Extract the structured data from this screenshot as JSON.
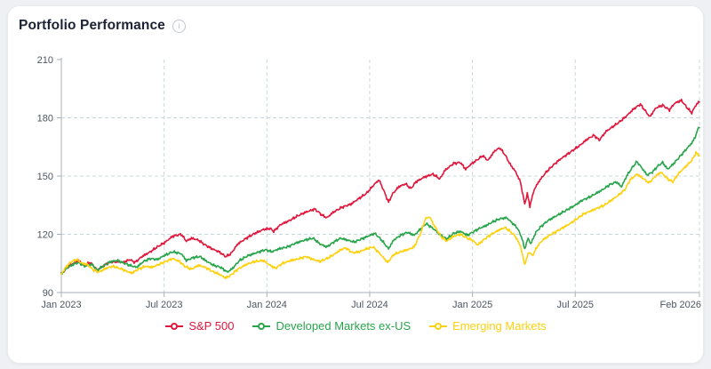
{
  "header": {
    "title": "Portfolio Performance"
  },
  "icons": {
    "info_glyph": "i"
  },
  "chart_data": {
    "type": "line",
    "title": "Portfolio Performance",
    "x_axis": {
      "range_months": [
        0,
        37.25
      ],
      "ticks": [
        {
          "t": 0,
          "label": "Jan 2023"
        },
        {
          "t": 6,
          "label": "Jul 2023"
        },
        {
          "t": 12,
          "label": "Jan 2024"
        },
        {
          "t": 18,
          "label": "Jul 2024"
        },
        {
          "t": 24,
          "label": "Jan 2025"
        },
        {
          "t": 30,
          "label": "Jul 2025"
        },
        {
          "t": 37.25,
          "label": "Feb 2026"
        }
      ]
    },
    "y_axis": {
      "range": [
        90,
        210
      ],
      "ticks": [
        90,
        120,
        150,
        180,
        210
      ],
      "gridlines_dashed": [
        120,
        150,
        180
      ]
    },
    "styling": {
      "grid_color": "#c8d8da",
      "axis_color": "#a9b0b8",
      "tick_label_color": "#4d5560",
      "noise_amplitude": 0.8
    },
    "legend": {
      "position": "bottom-center"
    },
    "series": [
      {
        "name": "S&P 500",
        "color": "#e0173d",
        "points": [
          [
            0,
            99.5
          ],
          [
            0.35,
            103
          ],
          [
            0.7,
            105
          ],
          [
            1,
            106.5
          ],
          [
            1.3,
            104
          ],
          [
            1.7,
            105.5
          ],
          [
            2.1,
            101.5
          ],
          [
            2.4,
            103.5
          ],
          [
            2.8,
            105.5
          ],
          [
            3.2,
            106
          ],
          [
            3.6,
            105.5
          ],
          [
            4,
            107
          ],
          [
            4.3,
            105.5
          ],
          [
            4.7,
            108.5
          ],
          [
            5.2,
            111
          ],
          [
            5.6,
            113.5
          ],
          [
            6,
            115.5
          ],
          [
            6.5,
            119
          ],
          [
            7,
            120
          ],
          [
            7.3,
            116.5
          ],
          [
            7.6,
            118
          ],
          [
            8,
            117
          ],
          [
            8.4,
            114.5
          ],
          [
            8.8,
            112.5
          ],
          [
            9.2,
            111
          ],
          [
            9.6,
            108.5
          ],
          [
            9.9,
            110
          ],
          [
            10.3,
            115
          ],
          [
            10.8,
            118
          ],
          [
            11.3,
            120.5
          ],
          [
            11.8,
            122.5
          ],
          [
            12.2,
            123
          ],
          [
            12.4,
            121.5
          ],
          [
            12.8,
            125
          ],
          [
            13.3,
            127
          ],
          [
            13.8,
            129.5
          ],
          [
            14.3,
            131.5
          ],
          [
            14.8,
            133
          ],
          [
            15.2,
            130
          ],
          [
            15.5,
            128.5
          ],
          [
            15.9,
            131.5
          ],
          [
            16.4,
            134
          ],
          [
            16.9,
            135.5
          ],
          [
            17.3,
            138
          ],
          [
            17.8,
            141
          ],
          [
            18.3,
            146
          ],
          [
            18.55,
            148
          ],
          [
            18.8,
            143
          ],
          [
            19.1,
            136.5
          ],
          [
            19.35,
            141
          ],
          [
            19.7,
            144.5
          ],
          [
            20.1,
            146
          ],
          [
            20.4,
            143.5
          ],
          [
            20.7,
            147
          ],
          [
            21.2,
            149.5
          ],
          [
            21.7,
            151
          ],
          [
            22.1,
            148.5
          ],
          [
            22.4,
            153
          ],
          [
            22.9,
            156.5
          ],
          [
            23.3,
            157
          ],
          [
            23.6,
            153.5
          ],
          [
            23.9,
            156
          ],
          [
            24.3,
            158.5
          ],
          [
            24.6,
            160.5
          ],
          [
            24.9,
            158
          ],
          [
            25.3,
            163
          ],
          [
            25.6,
            164.5
          ],
          [
            25.9,
            161
          ],
          [
            26.2,
            156
          ],
          [
            26.5,
            152.5
          ],
          [
            26.8,
            147
          ],
          [
            27.05,
            135.5
          ],
          [
            27.2,
            141
          ],
          [
            27.35,
            134.5
          ],
          [
            27.6,
            143
          ],
          [
            27.9,
            147.5
          ],
          [
            28.3,
            152
          ],
          [
            28.7,
            155.5
          ],
          [
            29.1,
            158.5
          ],
          [
            29.5,
            161
          ],
          [
            29.9,
            163.5
          ],
          [
            30.3,
            166
          ],
          [
            30.7,
            169
          ],
          [
            31.1,
            171
          ],
          [
            31.4,
            168.5
          ],
          [
            31.8,
            173
          ],
          [
            32.2,
            175.5
          ],
          [
            32.6,
            178
          ],
          [
            33,
            181
          ],
          [
            33.4,
            184.5
          ],
          [
            33.8,
            187
          ],
          [
            34.1,
            183.5
          ],
          [
            34.35,
            180.5
          ],
          [
            34.7,
            185
          ],
          [
            35.1,
            186.5
          ],
          [
            35.5,
            184
          ],
          [
            35.8,
            187.5
          ],
          [
            36.2,
            189
          ],
          [
            36.5,
            185.5
          ],
          [
            36.8,
            182.5
          ],
          [
            37,
            186
          ],
          [
            37.25,
            188.5
          ]
        ]
      },
      {
        "name": "Developed Markets ex-US",
        "color": "#28a44b",
        "points": [
          [
            0,
            99.5
          ],
          [
            0.3,
            102.5
          ],
          [
            0.7,
            104.5
          ],
          [
            1,
            105.5
          ],
          [
            1.4,
            103.5
          ],
          [
            1.8,
            104.5
          ],
          [
            2.1,
            101.5
          ],
          [
            2.5,
            104
          ],
          [
            2.9,
            106
          ],
          [
            3.3,
            106.5
          ],
          [
            3.7,
            105
          ],
          [
            4,
            104
          ],
          [
            4.4,
            103
          ],
          [
            4.8,
            106
          ],
          [
            5.2,
            107.5
          ],
          [
            5.6,
            107
          ],
          [
            6,
            109
          ],
          [
            6.5,
            111
          ],
          [
            7,
            110
          ],
          [
            7.3,
            106.5
          ],
          [
            7.7,
            108
          ],
          [
            8.1,
            108.5
          ],
          [
            8.5,
            106
          ],
          [
            8.9,
            104
          ],
          [
            9.3,
            103
          ],
          [
            9.7,
            100.5
          ],
          [
            10,
            102.5
          ],
          [
            10.4,
            106.5
          ],
          [
            10.9,
            109
          ],
          [
            11.4,
            110.5
          ],
          [
            11.9,
            112
          ],
          [
            12.3,
            111
          ],
          [
            12.7,
            112.5
          ],
          [
            13.2,
            113.5
          ],
          [
            13.7,
            115.5
          ],
          [
            14.2,
            117
          ],
          [
            14.7,
            118
          ],
          [
            15.1,
            115
          ],
          [
            15.5,
            113.5
          ],
          [
            15.9,
            116
          ],
          [
            16.3,
            118
          ],
          [
            16.7,
            117
          ],
          [
            17.1,
            116
          ],
          [
            17.5,
            117.5
          ],
          [
            17.9,
            119
          ],
          [
            18.3,
            120.5
          ],
          [
            18.7,
            117
          ],
          [
            19.1,
            112.5
          ],
          [
            19.4,
            117
          ],
          [
            19.8,
            119.5
          ],
          [
            20.2,
            121
          ],
          [
            20.6,
            119.5
          ],
          [
            21,
            123
          ],
          [
            21.3,
            125.5
          ],
          [
            21.7,
            123
          ],
          [
            22.1,
            120
          ],
          [
            22.5,
            117.5
          ],
          [
            22.9,
            120.5
          ],
          [
            23.3,
            121.5
          ],
          [
            23.7,
            119.5
          ],
          [
            24,
            121
          ],
          [
            24.4,
            123
          ],
          [
            24.8,
            124.5
          ],
          [
            25.2,
            126.5
          ],
          [
            25.6,
            128
          ],
          [
            26,
            128.5
          ],
          [
            26.3,
            126
          ],
          [
            26.6,
            123.5
          ],
          [
            26.85,
            119
          ],
          [
            27.05,
            112.5
          ],
          [
            27.25,
            118
          ],
          [
            27.4,
            115
          ],
          [
            27.7,
            121
          ],
          [
            28,
            124
          ],
          [
            28.4,
            127
          ],
          [
            28.8,
            129
          ],
          [
            29.2,
            131
          ],
          [
            29.6,
            133
          ],
          [
            30,
            135
          ],
          [
            30.4,
            137.5
          ],
          [
            30.8,
            139
          ],
          [
            31.2,
            141
          ],
          [
            31.6,
            143
          ],
          [
            32,
            145.5
          ],
          [
            32.4,
            147
          ],
          [
            32.7,
            144.5
          ],
          [
            33,
            150
          ],
          [
            33.3,
            154
          ],
          [
            33.6,
            157.5
          ],
          [
            33.9,
            154
          ],
          [
            34.2,
            150.5
          ],
          [
            34.5,
            152
          ],
          [
            34.8,
            155
          ],
          [
            35.1,
            157
          ],
          [
            35.4,
            153.5
          ],
          [
            35.7,
            156
          ],
          [
            36,
            159
          ],
          [
            36.4,
            163
          ],
          [
            36.8,
            167
          ],
          [
            37,
            170
          ],
          [
            37.15,
            174
          ],
          [
            37.25,
            175.5
          ]
        ]
      },
      {
        "name": "Emerging Markets",
        "color": "#fed10f",
        "points": [
          [
            0,
            99.5
          ],
          [
            0.3,
            103.5
          ],
          [
            0.6,
            106
          ],
          [
            0.9,
            107
          ],
          [
            1.2,
            105
          ],
          [
            1.5,
            104.5
          ],
          [
            1.9,
            101.5
          ],
          [
            2.2,
            100.5
          ],
          [
            2.6,
            102.5
          ],
          [
            3,
            103.5
          ],
          [
            3.4,
            102.5
          ],
          [
            3.8,
            101
          ],
          [
            4.1,
            100
          ],
          [
            4.5,
            102
          ],
          [
            4.9,
            103.5
          ],
          [
            5.3,
            103
          ],
          [
            5.7,
            104.5
          ],
          [
            6.1,
            106
          ],
          [
            6.5,
            107.5
          ],
          [
            6.9,
            106
          ],
          [
            7.2,
            103.5
          ],
          [
            7.6,
            102
          ],
          [
            8,
            104
          ],
          [
            8.4,
            103
          ],
          [
            8.8,
            101
          ],
          [
            9.2,
            99.5
          ],
          [
            9.6,
            97.5
          ],
          [
            9.9,
            99
          ],
          [
            10.3,
            102
          ],
          [
            10.8,
            104.5
          ],
          [
            11.3,
            106
          ],
          [
            11.8,
            106.5
          ],
          [
            12.1,
            104.5
          ],
          [
            12.5,
            102.5
          ],
          [
            12.9,
            105
          ],
          [
            13.4,
            106.5
          ],
          [
            13.9,
            107.5
          ],
          [
            14.3,
            108.5
          ],
          [
            14.7,
            107
          ],
          [
            15.1,
            106
          ],
          [
            15.5,
            107.5
          ],
          [
            15.9,
            109.5
          ],
          [
            16.3,
            112
          ],
          [
            16.6,
            113
          ],
          [
            17,
            110.5
          ],
          [
            17.4,
            111
          ],
          [
            17.8,
            112.5
          ],
          [
            18.2,
            113.5
          ],
          [
            18.6,
            110
          ],
          [
            19.05,
            105.5
          ],
          [
            19.4,
            109.5
          ],
          [
            19.8,
            111
          ],
          [
            20.2,
            112
          ],
          [
            20.6,
            113.5
          ],
          [
            21,
            121
          ],
          [
            21.25,
            128
          ],
          [
            21.5,
            129
          ],
          [
            21.8,
            124
          ],
          [
            22.2,
            118.5
          ],
          [
            22.5,
            116.5
          ],
          [
            22.9,
            119
          ],
          [
            23.3,
            120
          ],
          [
            23.7,
            118
          ],
          [
            24,
            117
          ],
          [
            24.3,
            114.5
          ],
          [
            24.7,
            117.5
          ],
          [
            25.1,
            120
          ],
          [
            25.5,
            122
          ],
          [
            25.9,
            123.5
          ],
          [
            26.2,
            121.5
          ],
          [
            26.5,
            119
          ],
          [
            26.8,
            114
          ],
          [
            27.05,
            104.5
          ],
          [
            27.3,
            111
          ],
          [
            27.5,
            109
          ],
          [
            27.8,
            114
          ],
          [
            28.1,
            117
          ],
          [
            28.5,
            119.5
          ],
          [
            28.9,
            121.5
          ],
          [
            29.3,
            123.5
          ],
          [
            29.7,
            125.5
          ],
          [
            30.1,
            128
          ],
          [
            30.5,
            130.5
          ],
          [
            30.9,
            132
          ],
          [
            31.3,
            133.5
          ],
          [
            31.7,
            135
          ],
          [
            32.1,
            137.5
          ],
          [
            32.5,
            140
          ],
          [
            32.9,
            143
          ],
          [
            33.2,
            148
          ],
          [
            33.6,
            151
          ],
          [
            34,
            148.5
          ],
          [
            34.3,
            146.5
          ],
          [
            34.7,
            150
          ],
          [
            35,
            152
          ],
          [
            35.4,
            148.5
          ],
          [
            35.7,
            147
          ],
          [
            36,
            151
          ],
          [
            36.4,
            154.5
          ],
          [
            36.8,
            158
          ],
          [
            37.05,
            162
          ],
          [
            37.25,
            160.5
          ]
        ]
      }
    ]
  }
}
